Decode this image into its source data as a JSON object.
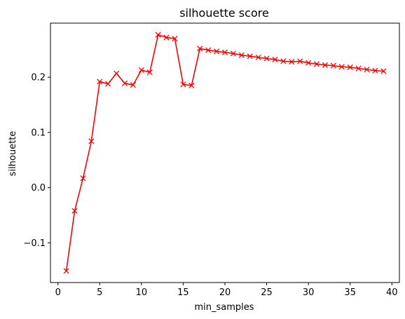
{
  "chart_data": {
    "type": "line",
    "title": "silhouette score",
    "xlabel": "min_samples",
    "ylabel": "silhouette",
    "xlim": [
      -0.9,
      40.9
    ],
    "ylim": [
      -0.172,
      0.298
    ],
    "x_ticks": [
      0,
      5,
      10,
      15,
      20,
      25,
      30,
      35,
      40
    ],
    "y_ticks": [
      -0.1,
      0.0,
      0.1,
      0.2
    ],
    "y_tick_labels": [
      "−0.1",
      "0.0",
      "0.1",
      "0.2"
    ],
    "grid": false,
    "legend": false,
    "series": [
      {
        "color": "#ff0000",
        "marker": "x",
        "x": [
          1,
          2,
          3,
          4,
          5,
          6,
          7,
          8,
          9,
          10,
          11,
          12,
          13,
          14,
          15,
          16,
          17,
          18,
          19,
          20,
          21,
          22,
          23,
          24,
          25,
          26,
          27,
          28,
          29,
          30,
          31,
          32,
          33,
          34,
          35,
          36,
          37,
          38,
          39
        ],
        "y": [
          -0.151,
          -0.042,
          0.017,
          0.084,
          0.192,
          0.188,
          0.207,
          0.189,
          0.186,
          0.213,
          0.209,
          0.277,
          0.272,
          0.27,
          0.187,
          0.185,
          0.252,
          0.249,
          0.247,
          0.245,
          0.243,
          0.24,
          0.238,
          0.236,
          0.234,
          0.232,
          0.229,
          0.228,
          0.229,
          0.226,
          0.224,
          0.222,
          0.221,
          0.219,
          0.218,
          0.216,
          0.214,
          0.212,
          0.211
        ]
      }
    ]
  }
}
